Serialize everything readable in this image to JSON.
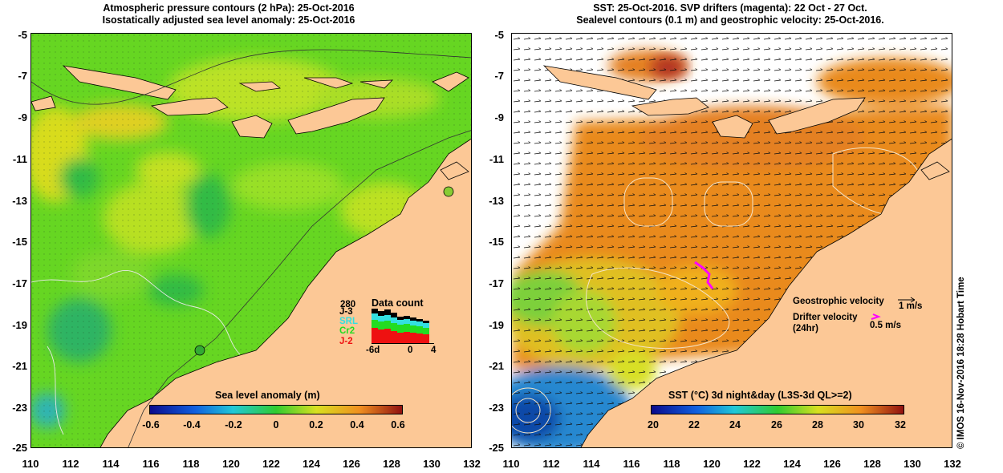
{
  "left_panel": {
    "title_line1": "Atmospheric pressure contours (2 hPa): 25-Oct-2016",
    "title_line2": "Isostatically adjusted sea level anomaly: 25-Oct-2016",
    "colorbar_label": "Sea level anomaly (m)",
    "colorbar_ticks": [
      "-0.6",
      "-0.4",
      "-0.2",
      "0",
      "0.2",
      "0.4",
      "0.6"
    ],
    "datacount": {
      "title": "Data count",
      "top_value": "280",
      "satellites": [
        "J-3",
        "SRL",
        "Cr2",
        "J-2"
      ],
      "satellite_colors": [
        "#000000",
        "#33e0e0",
        "#22dd22",
        "#ee1111"
      ],
      "axis_labels": [
        "-6d",
        "0",
        "4"
      ]
    }
  },
  "right_panel": {
    "title_line1": "SST: 25-Oct-2016. SVP drifters (magenta): 22 Oct - 27 Oct.",
    "title_line2": "Sealevel contours (0.1 m) and geostrophic velocity: 25-Oct-2016.",
    "colorbar_label": "SST (°C) 3d night&day (L3S-3d QL>=2)",
    "colorbar_ticks": [
      "20",
      "22",
      "24",
      "26",
      "28",
      "30",
      "32"
    ],
    "geo_velocity_label": "Geostrophic velocity",
    "geo_velocity_scale": "1 m/s",
    "drifter_label_line1": "Drifter velocity",
    "drifter_label_line2": "(24hr)",
    "drifter_scale": "0.5 m/s"
  },
  "axes": {
    "y_labels": [
      "-5",
      "-7",
      "-9",
      "-11",
      "-13",
      "-15",
      "-17",
      "-19",
      "-21",
      "-23",
      "-25"
    ],
    "x_labels": [
      "110",
      "112",
      "114",
      "116",
      "118",
      "120",
      "122",
      "124",
      "126",
      "128",
      "130",
      "132"
    ]
  },
  "credit": "© IMOS 16-Nov-2016 18:28 Hobart Time",
  "colors": {
    "land": "#fcc896",
    "sla_green": "#66d622",
    "sst_orange": "#e98a1e"
  }
}
